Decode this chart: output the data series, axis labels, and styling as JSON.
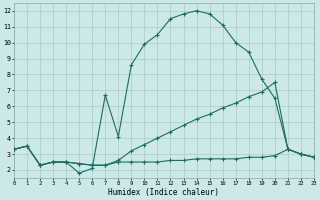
{
  "xlabel": "Humidex (Indice chaleur)",
  "bg_color": "#cce8e8",
  "grid_color": "#aacccc",
  "line_color": "#1a6e60",
  "xlim": [
    0,
    23
  ],
  "ylim": [
    1.5,
    12.5
  ],
  "xticks": [
    0,
    1,
    2,
    3,
    4,
    5,
    6,
    7,
    8,
    9,
    10,
    11,
    12,
    13,
    14,
    15,
    16,
    17,
    18,
    19,
    20,
    21,
    22,
    23
  ],
  "yticks": [
    2,
    3,
    4,
    5,
    6,
    7,
    8,
    9,
    10,
    11,
    12
  ],
  "line1_x": [
    0,
    1,
    2,
    3,
    4,
    5,
    6,
    7,
    8,
    9,
    10,
    11,
    12,
    13,
    14,
    15,
    16,
    17,
    18,
    19,
    20,
    21,
    22,
    23
  ],
  "line1_y": [
    3.3,
    3.5,
    2.3,
    2.5,
    2.5,
    1.8,
    2.1,
    6.7,
    4.1,
    8.6,
    9.9,
    10.5,
    11.5,
    11.8,
    12.0,
    11.8,
    11.1,
    10.0,
    9.4,
    7.7,
    6.5,
    3.3,
    3.0,
    2.8
  ],
  "line2_x": [
    0,
    1,
    2,
    3,
    4,
    5,
    6,
    7,
    8,
    9,
    10,
    11,
    12,
    13,
    14,
    15,
    16,
    17,
    18,
    19,
    20,
    21,
    22,
    23
  ],
  "line2_y": [
    3.3,
    3.5,
    2.3,
    2.5,
    2.5,
    2.4,
    2.3,
    2.3,
    2.6,
    3.2,
    3.6,
    4.0,
    4.4,
    4.8,
    5.2,
    5.5,
    5.9,
    6.2,
    6.6,
    6.9,
    7.5,
    3.3,
    3.0,
    2.8
  ],
  "line3_x": [
    0,
    1,
    2,
    3,
    4,
    5,
    6,
    7,
    8,
    9,
    10,
    11,
    12,
    13,
    14,
    15,
    16,
    17,
    18,
    19,
    20,
    21,
    22,
    23
  ],
  "line3_y": [
    3.3,
    3.5,
    2.3,
    2.5,
    2.5,
    2.4,
    2.3,
    2.3,
    2.5,
    2.5,
    2.5,
    2.5,
    2.6,
    2.6,
    2.7,
    2.7,
    2.7,
    2.7,
    2.8,
    2.8,
    2.9,
    3.3,
    3.0,
    2.8
  ]
}
